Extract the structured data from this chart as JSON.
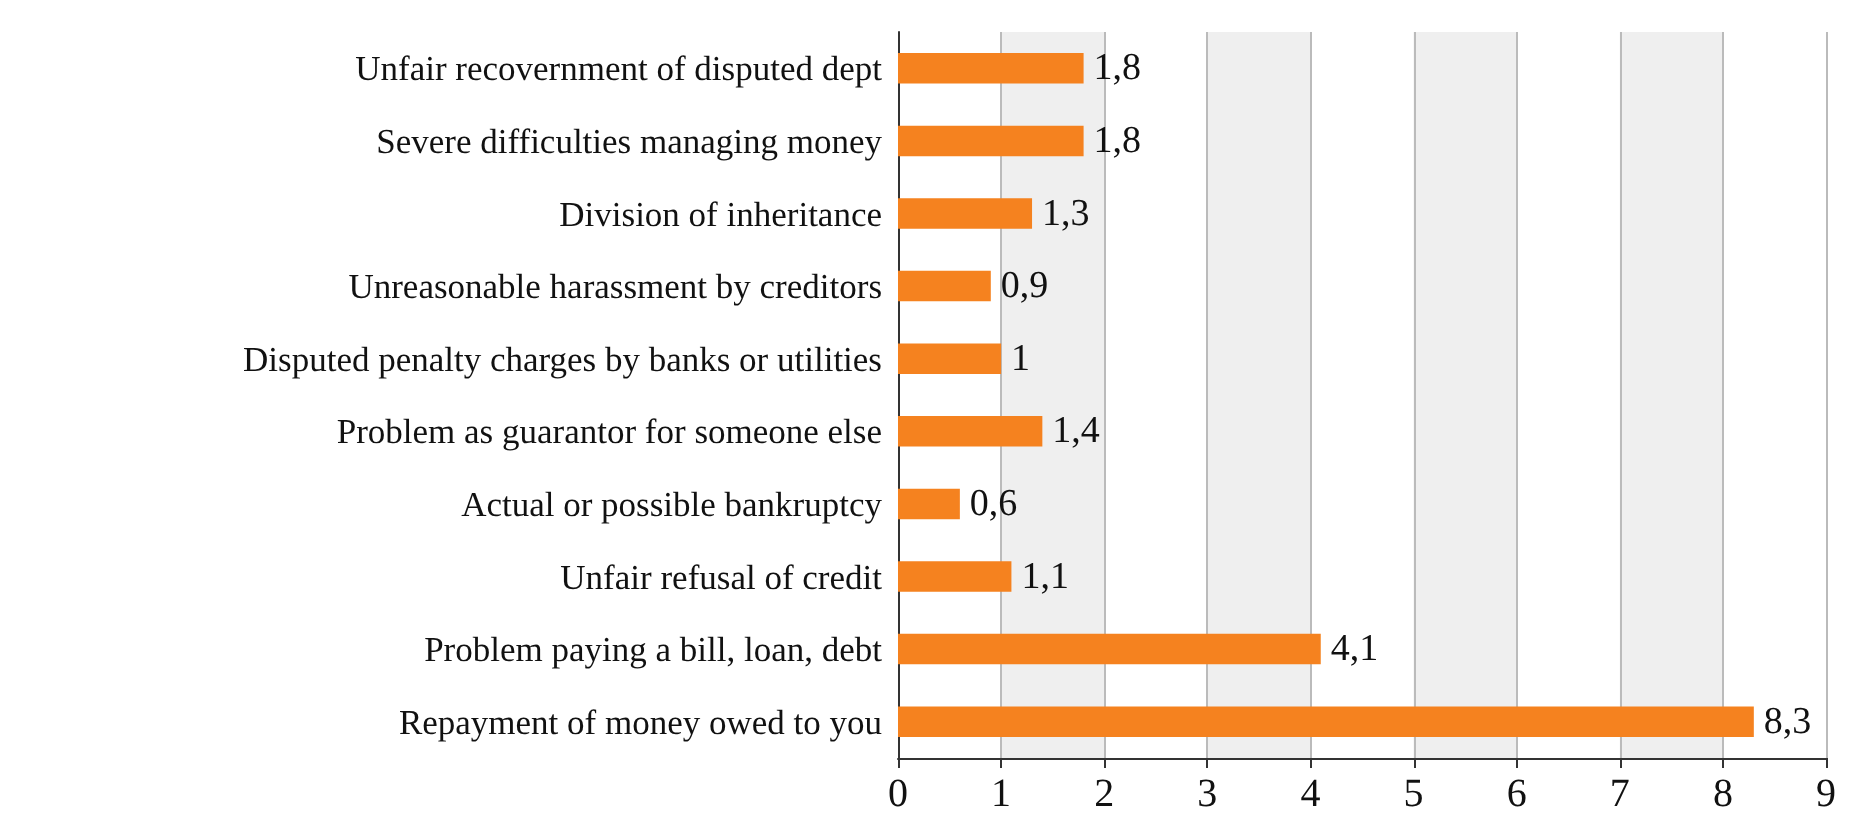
{
  "chart_data": {
    "type": "bar",
    "orientation": "horizontal",
    "categories": [
      "Unfair recovernment of disputed dept",
      "Severe difficulties managing money",
      "Division of inheritance",
      "Unreasonable harassment by creditors",
      "Disputed penalty charges by banks or utilities",
      "Problem as guarantor for someone else",
      "Actual or possible bankruptcy",
      "Unfair refusal of credit",
      "Problem paying a bill, loan, debt",
      "Repayment of money owed to you"
    ],
    "values": [
      1.8,
      1.8,
      1.3,
      0.9,
      1,
      1.4,
      0.6,
      1.1,
      4.1,
      8.3
    ],
    "value_labels": [
      "1,8",
      "1,8",
      "1,3",
      "0,9",
      "1",
      "1,4",
      "0,6",
      "1,1",
      "4,1",
      "8,3"
    ],
    "color": "#f5821f",
    "xlim": [
      0,
      9
    ],
    "xticks": [
      0,
      1,
      2,
      3,
      4,
      5,
      6,
      7,
      8,
      9
    ],
    "grid": "x"
  }
}
